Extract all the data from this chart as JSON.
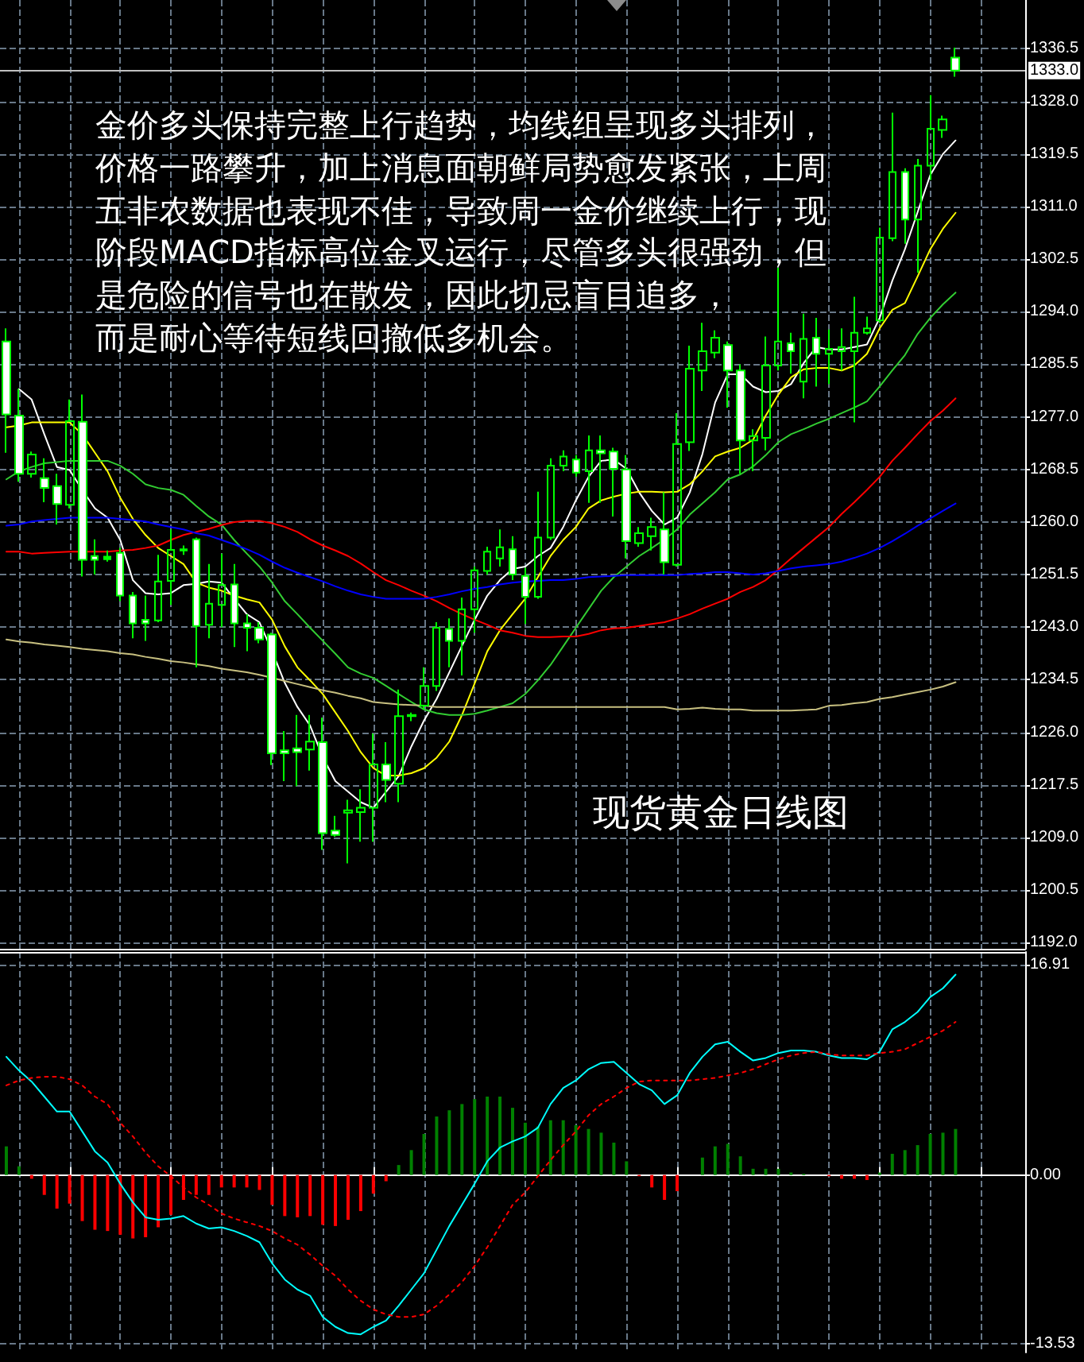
{
  "chart_data": [
    {
      "type": "candlestick",
      "categories": [
        null,
        null,
        null,
        null,
        null,
        null,
        null,
        null,
        null,
        null,
        null,
        null,
        null,
        null,
        null,
        null,
        null,
        null,
        null,
        null,
        null,
        null,
        null,
        null,
        null,
        null,
        null,
        null,
        null,
        null,
        null,
        null,
        null,
        null,
        null,
        null,
        null,
        null,
        null,
        null,
        null,
        null,
        null,
        null,
        null,
        null,
        null,
        null,
        null,
        null,
        null,
        null,
        null,
        null,
        null,
        null,
        null,
        null,
        null,
        null,
        null,
        null,
        null,
        null,
        null,
        null,
        null,
        null,
        null,
        null,
        null,
        null,
        null,
        null,
        null,
        null,
        null,
        null,
        null,
        null,
        null
      ],
      "ohlc": [
        [
          1289.2,
          1291.3,
          1271.2,
          1277.4
        ],
        [
          1277.2,
          1281.5,
          1266.5,
          1267.8
        ],
        [
          1267.8,
          1271.4,
          1267.2,
          1270.9
        ],
        [
          1267.1,
          1270.3,
          1263.2,
          1265.5
        ],
        [
          1265.8,
          1267.8,
          1259.6,
          1262.9
        ],
        [
          1262.8,
          1279.8,
          1262.2,
          1276.3
        ],
        [
          1276.2,
          1280.6,
          1251.2,
          1253.9
        ],
        [
          1254.5,
          1257.2,
          1251.5,
          1253.9
        ],
        [
          1254.0,
          1255.4,
          1253.6,
          1254.4
        ],
        [
          1255.0,
          1255.8,
          1247.2,
          1248.1
        ],
        [
          1248.1,
          1248.7,
          1241.2,
          1243.6
        ],
        [
          1244.2,
          1248.1,
          1240.8,
          1243.6
        ],
        [
          1244.1,
          1254.7,
          1243.8,
          1250.4
        ],
        [
          1250.5,
          1258.8,
          1246.6,
          1255.5
        ],
        [
          1255.4,
          1256.2,
          1254.7,
          1255.6
        ],
        [
          1257.2,
          1257.5,
          1236.5,
          1243.2
        ],
        [
          1243.4,
          1253.2,
          1241.2,
          1246.8
        ],
        [
          1246.6,
          1254.9,
          1243.0,
          1249.8
        ],
        [
          1249.9,
          1253.2,
          1239.8,
          1243.6
        ],
        [
          1243.6,
          1245.1,
          1239.1,
          1242.9
        ],
        [
          1242.9,
          1243.8,
          1240.4,
          1241.0
        ],
        [
          1241.8,
          1242.1,
          1220.7,
          1222.6
        ],
        [
          1223.1,
          1226.2,
          1218.1,
          1222.6
        ],
        [
          1223.4,
          1228.8,
          1217.3,
          1222.8
        ],
        [
          1223.2,
          1228.8,
          1219.8,
          1224.5
        ],
        [
          1224.4,
          1228.4,
          1207.0,
          1209.7
        ],
        [
          1210.1,
          1212.5,
          1209.1,
          1209.4
        ],
        [
          1213.0,
          1215.1,
          1204.8,
          1213.4
        ],
        [
          1213.1,
          1216.8,
          1208.3,
          1213.8
        ],
        [
          1213.8,
          1225.8,
          1208.3,
          1220.8
        ],
        [
          1220.8,
          1224.4,
          1214.7,
          1218.3
        ],
        [
          1217.7,
          1232.9,
          1214.7,
          1228.6
        ],
        [
          1228.6,
          1229.2,
          1227.8,
          1228.8
        ],
        [
          1230.3,
          1236.5,
          1229.7,
          1233.5
        ],
        [
          1233.5,
          1243.8,
          1232.7,
          1242.9
        ],
        [
          1242.7,
          1244.4,
          1236.5,
          1240.8
        ],
        [
          1240.8,
          1247.8,
          1235.2,
          1245.9
        ],
        [
          1245.9,
          1252.8,
          1242.1,
          1252.2
        ],
        [
          1252.1,
          1256.0,
          1251.5,
          1255.2
        ],
        [
          1254.1,
          1258.8,
          1252.8,
          1255.9
        ],
        [
          1255.6,
          1257.7,
          1250.6,
          1251.5
        ],
        [
          1251.3,
          1252.6,
          1243.5,
          1247.9
        ],
        [
          1247.9,
          1264.9,
          1247.6,
          1257.5
        ],
        [
          1257.5,
          1270.3,
          1257.1,
          1269.1
        ],
        [
          1269.1,
          1271.6,
          1268.2,
          1270.6
        ],
        [
          1270.1,
          1270.8,
          1267.3,
          1268.0
        ],
        [
          1268.2,
          1274.0,
          1263.1,
          1271.6
        ],
        [
          1271.6,
          1274.0,
          1263.1,
          1271.1
        ],
        [
          1271.4,
          1272.0,
          1260.9,
          1268.6
        ],
        [
          1268.5,
          1270.8,
          1254.1,
          1256.9
        ],
        [
          1256.6,
          1259.2,
          1256.0,
          1258.2
        ],
        [
          1257.7,
          1260.7,
          1255.4,
          1259.2
        ],
        [
          1258.8,
          1264.8,
          1251.5,
          1253.5
        ],
        [
          1253.1,
          1277.6,
          1252.8,
          1272.6
        ],
        [
          1272.9,
          1288.5,
          1271.5,
          1284.8
        ],
        [
          1284.5,
          1292.2,
          1281.2,
          1287.6
        ],
        [
          1287.4,
          1291.0,
          1286.5,
          1289.8
        ],
        [
          1288.6,
          1289.2,
          1278.5,
          1284.5
        ],
        [
          1284.5,
          1285.5,
          1267.8,
          1273.2
        ],
        [
          1273.2,
          1275.0,
          1268.2,
          1273.9
        ],
        [
          1273.6,
          1290.0,
          1271.6,
          1285.3
        ],
        [
          1285.3,
          1301.1,
          1284.5,
          1289.2
        ],
        [
          1288.9,
          1290.6,
          1284.0,
          1287.6
        ],
        [
          1282.7,
          1293.7,
          1280.0,
          1289.6
        ],
        [
          1289.8,
          1293.0,
          1281.9,
          1287.2
        ],
        [
          1287.2,
          1291.1,
          1282.3,
          1288.0
        ],
        [
          1287.6,
          1291.3,
          1284.5,
          1288.3
        ],
        [
          1287.6,
          1296.4,
          1276.1,
          1290.6
        ],
        [
          1290.6,
          1293.2,
          1290.3,
          1291.3
        ],
        [
          1292.6,
          1307.6,
          1292.2,
          1306.0
        ],
        [
          1305.9,
          1326.2,
          1305.4,
          1316.6
        ],
        [
          1316.6,
          1317.2,
          1305.0,
          1308.9
        ],
        [
          1308.9,
          1318.7,
          1300.3,
          1317.6
        ],
        [
          1317.6,
          1329.0,
          1315.3,
          1323.6
        ],
        [
          1323.4,
          1325.7,
          1322.1,
          1325.1
        ],
        [
          1335.1,
          1336.7,
          1332.0,
          1333.0
        ],
        null,
        null,
        null,
        null,
        null
      ],
      "color": "#00ff00",
      "colors": [
        "#ffffff",
        "#ffffff",
        null,
        "#ffffff",
        "#ffffff",
        null,
        "#ffffff",
        "#ffffff",
        "#00ff00",
        "#ffffff",
        "#ffffff",
        "#ffffff",
        null,
        null,
        "#00ff00",
        "#ffffff",
        null,
        null,
        "#ffffff",
        "#ffffff",
        "#ffffff",
        "#ffffff",
        "#ffffff",
        "#ffffff",
        null,
        "#ffffff",
        "#ffffff",
        null,
        null,
        null,
        "#ffffff",
        null,
        "#00ff00",
        null,
        null,
        "#ffffff",
        null,
        null,
        null,
        null,
        "#ffffff",
        "#ffffff",
        null,
        null,
        null,
        "#ffffff",
        null,
        "#ffffff",
        "#ffffff",
        "#ffffff",
        null,
        null,
        "#ffffff",
        null,
        null,
        null,
        null,
        "#ffffff",
        "#ffffff",
        null,
        null,
        null,
        "#ffffff",
        null,
        "#ffffff",
        null,
        null,
        null,
        null,
        null,
        null,
        "#ffffff",
        null,
        null,
        null,
        "#ffffff",
        null,
        null,
        null,
        null,
        null
      ],
      "series": [
        {
          "type": "line",
          "color": "#ffffff",
          "values": [
            null,
            1281.5,
            1279.8,
            1274.2,
            1268.9,
            1268.4,
            1265.2,
            1262.2,
            1260.7,
            1257.1,
            1250.6,
            1248.5,
            1248.3,
            1248.5,
            1249.8,
            1250.0,
            1250.4,
            1250.2,
            1247.6,
            1245.1,
            1243.8,
            1239.1,
            1234.0,
            1230.1,
            1227.1,
            1222.0,
            1218.1,
            1216.4,
            1214.7,
            1213.8,
            1216.4,
            1218.9,
            1223.7,
            1227.9,
            1231.4,
            1235.7,
            1240.0,
            1244.2,
            1248.1,
            1250.6,
            1252.4,
            1252.8,
            1254.5,
            1255.8,
            1259.2,
            1263.5,
            1267.3,
            1269.9,
            1270.1,
            1268.6,
            1264.8,
            1261.8,
            1259.6,
            1260.7,
            1264.8,
            1271.0,
            1279.3,
            1283.9,
            1283.9,
            1281.9,
            1281.0,
            1281.2,
            1282.3,
            1285.7,
            1288.3,
            1287.9,
            1287.9,
            1288.3,
            1288.7,
            1293.0,
            1299.0,
            1304.1,
            1310.1,
            1316.1,
            1319.5,
            1321.7,
            null,
            null,
            null,
            null,
            null
          ]
        },
        {
          "type": "line",
          "color": "#ffff00",
          "values": [
            1275.3,
            1275.6,
            1276.1,
            1276.1,
            1276.1,
            1276.1,
            1274.2,
            1271.2,
            1268.2,
            1263.9,
            1260.5,
            1257.9,
            1255.8,
            1254.5,
            1253.2,
            1250.2,
            1249.4,
            1248.9,
            1248.1,
            1247.5,
            1247.0,
            1244.2,
            1239.9,
            1236.5,
            1234.4,
            1232.2,
            1229.2,
            1226.2,
            1222.8,
            1220.2,
            1219.0,
            1219.0,
            1219.4,
            1220.2,
            1221.9,
            1224.5,
            1228.8,
            1233.9,
            1239.1,
            1242.5,
            1245.1,
            1247.6,
            1251.1,
            1254.5,
            1257.1,
            1259.2,
            1262.2,
            1263.5,
            1264.1,
            1264.6,
            1264.9,
            1264.9,
            1264.8,
            1264.9,
            1266.1,
            1268.2,
            1270.6,
            1271.4,
            1272.0,
            1273.3,
            1277.2,
            1280.6,
            1283.4,
            1284.7,
            1284.9,
            1284.9,
            1284.5,
            1285.3,
            1287.2,
            1291.3,
            1294.3,
            1295.4,
            1299.7,
            1304.1,
            1307.4,
            1310.0,
            null,
            null,
            null,
            null,
            null
          ]
        },
        {
          "type": "line",
          "color": "#32cd32",
          "values": [
            1266.9,
            1268.2,
            1268.9,
            1269.5,
            1269.7,
            1269.9,
            1269.9,
            1269.9,
            1269.9,
            1269.1,
            1267.8,
            1266.1,
            1265.5,
            1265.2,
            1264.4,
            1262.6,
            1260.9,
            1259.6,
            1257.1,
            1254.9,
            1252.8,
            1250.2,
            1247.2,
            1245.1,
            1242.9,
            1240.8,
            1238.7,
            1236.5,
            1235.5,
            1234.8,
            1233.5,
            1232.2,
            1230.9,
            1229.7,
            1229.1,
            1228.8,
            1228.8,
            1229.0,
            1229.5,
            1230.1,
            1230.7,
            1232.2,
            1234.4,
            1236.9,
            1239.9,
            1242.9,
            1245.9,
            1248.9,
            1251.1,
            1252.8,
            1254.5,
            1255.8,
            1257.2,
            1258.8,
            1261.2,
            1263.0,
            1264.8,
            1266.9,
            1267.7,
            1269.0,
            1270.8,
            1272.9,
            1274.2,
            1275.0,
            1275.9,
            1276.7,
            1277.6,
            1278.5,
            1279.5,
            1281.9,
            1284.5,
            1287.0,
            1290.4,
            1293.0,
            1295.2,
            1297.1,
            null,
            null,
            null,
            null,
            null
          ]
        },
        {
          "type": "line",
          "color": "#ff0000",
          "values": [
            1255.2,
            1255.2,
            1254.9,
            1255.0,
            1255.1,
            1255.2,
            1255.2,
            1255.2,
            1255.2,
            1255.4,
            1255.5,
            1255.8,
            1256.2,
            1257.1,
            1257.9,
            1258.4,
            1258.9,
            1259.5,
            1260.0,
            1260.2,
            1260.2,
            1259.8,
            1259.2,
            1258.4,
            1257.2,
            1256.2,
            1255.4,
            1254.5,
            1253.3,
            1251.9,
            1250.6,
            1249.8,
            1248.9,
            1248.1,
            1247.2,
            1246.1,
            1245.1,
            1244.2,
            1243.4,
            1242.5,
            1242.1,
            1241.6,
            1241.4,
            1241.4,
            1241.5,
            1241.5,
            1241.9,
            1242.5,
            1242.8,
            1242.9,
            1243.2,
            1243.5,
            1243.8,
            1244.4,
            1245.1,
            1246.0,
            1246.8,
            1247.6,
            1248.7,
            1249.5,
            1250.6,
            1252.3,
            1254.1,
            1255.8,
            1257.5,
            1259.2,
            1261.3,
            1263.2,
            1265.2,
            1267.3,
            1269.9,
            1272.0,
            1274.2,
            1276.3,
            1278.0,
            1280.0,
            null,
            null,
            null,
            null,
            null
          ]
        },
        {
          "type": "line",
          "color": "#0000ff",
          "values": [
            1259.4,
            1259.6,
            1260.1,
            1260.3,
            1260.5,
            1260.7,
            1260.7,
            1260.7,
            1260.7,
            1260.5,
            1260.3,
            1260.1,
            1259.6,
            1259.2,
            1258.8,
            1258.2,
            1257.8,
            1257.1,
            1256.4,
            1255.6,
            1254.7,
            1253.6,
            1252.6,
            1251.8,
            1251.1,
            1250.4,
            1249.6,
            1248.9,
            1248.3,
            1247.9,
            1247.6,
            1247.6,
            1247.6,
            1247.6,
            1247.9,
            1248.3,
            1248.8,
            1249.2,
            1249.5,
            1249.9,
            1250.2,
            1250.4,
            1250.5,
            1250.6,
            1250.6,
            1250.8,
            1251.1,
            1251.2,
            1251.3,
            1251.4,
            1251.4,
            1251.4,
            1251.4,
            1251.4,
            1251.6,
            1251.7,
            1251.9,
            1251.9,
            1251.7,
            1251.5,
            1251.7,
            1252.1,
            1252.5,
            1252.8,
            1253.0,
            1253.2,
            1253.6,
            1254.2,
            1254.9,
            1255.8,
            1256.9,
            1258.1,
            1259.4,
            1260.6,
            1261.8,
            1263.0,
            null,
            null,
            null,
            null,
            null
          ]
        },
        {
          "type": "line",
          "color": "#c8c080",
          "values": [
            1241.0,
            1240.7,
            1240.5,
            1240.2,
            1240.0,
            1239.8,
            1239.5,
            1239.3,
            1239.1,
            1238.8,
            1238.6,
            1238.2,
            1237.9,
            1237.5,
            1237.3,
            1237.0,
            1236.7,
            1236.3,
            1236.0,
            1235.7,
            1235.3,
            1234.8,
            1234.3,
            1233.8,
            1233.3,
            1232.8,
            1232.4,
            1231.9,
            1231.5,
            1230.9,
            1230.7,
            1230.5,
            1230.4,
            1230.3,
            1230.1,
            1230.1,
            1230.1,
            1230.1,
            1230.1,
            1230.1,
            1230.1,
            1230.1,
            1230.1,
            1230.1,
            1230.1,
            1230.1,
            1230.1,
            1230.1,
            1230.1,
            1230.1,
            1230.1,
            1230.1,
            1230.1,
            1229.7,
            1229.8,
            1230.0,
            1229.8,
            1229.7,
            1229.7,
            1229.5,
            1229.5,
            1229.5,
            1229.5,
            1229.6,
            1229.7,
            1230.3,
            1230.4,
            1230.7,
            1230.9,
            1231.4,
            1231.7,
            1232.1,
            1232.5,
            1232.9,
            1233.4,
            1234.1,
            null,
            null,
            null,
            null,
            null
          ]
        }
      ],
      "ylim": [
        1191,
        1344.4
      ],
      "yticks": [
        {
          "value": 1192,
          "label": "1192.0"
        },
        1200.5,
        {
          "value": 1209,
          "label": "1209.0"
        },
        1217.5,
        {
          "value": 1226,
          "label": "1226.0"
        },
        1234.5,
        {
          "value": 1243,
          "label": "1243.0"
        },
        1251.5,
        {
          "value": 1260,
          "label": "1260.0"
        },
        1268.5,
        {
          "value": 1277,
          "label": "1277.0"
        },
        1285.5,
        {
          "value": 1294,
          "label": "1294.0"
        },
        1302.5,
        {
          "value": 1311,
          "label": "1311.0"
        },
        1319.5,
        {
          "value": 1328,
          "label": "1328.0"
        },
        1336.5
      ],
      "grid": true,
      "tick_labels": "y",
      "marker": "none",
      "ref_lines": [
        {
          "axis": "y",
          "value": 1333,
          "label": "1333.0",
          "color": "#c0c0c0"
        }
      ],
      "annotations": [
        "金价多头保持完整上行趋势，均线组呈现多头排列，",
        "价格一路攀升，加上消息面朝鲜局势愈发紧张，上周",
        "五非农数据也表现不佳，导致周一金价继续上行，现",
        "阶段MACD指标高位金叉运行，尽管多头很强劲，但",
        "是危险的信号也在散发，因此切忌盲目追多，",
        "而是耐心等待短线回撤低多机会。",
        "现货黄金日线图"
      ]
    },
    {
      "type": "bar",
      "categories": [
        null,
        null,
        null,
        null,
        null,
        null,
        null,
        null,
        null,
        null,
        null,
        null,
        null,
        null,
        null,
        null,
        null,
        null,
        null,
        null,
        null,
        null,
        null,
        null,
        null,
        null,
        null,
        null,
        null,
        null,
        null,
        null,
        null,
        null,
        null,
        null,
        null,
        null,
        null,
        null,
        null,
        null,
        null,
        null,
        null,
        null,
        null,
        null,
        null,
        null,
        null,
        null,
        null,
        null,
        null,
        null,
        null,
        null,
        null,
        null,
        null,
        null,
        null,
        null,
        null,
        null,
        null,
        null,
        null,
        null,
        null,
        null,
        null,
        null,
        null,
        null,
        null,
        null,
        null,
        null,
        null
      ],
      "series": [
        {
          "values": [
            2.3,
            0.7,
            -0.3,
            -1.6,
            -2.7,
            -2.3,
            -3.7,
            -4.4,
            -4.5,
            -4.8,
            -5.1,
            -5.0,
            -4.2,
            -3.2,
            -2.0,
            -1.6,
            -1.6,
            -1.0,
            -1.0,
            -1.0,
            -1.2,
            -2.4,
            -3.3,
            -3.4,
            -3.3,
            -4.0,
            -4.1,
            -3.6,
            -2.9,
            -1.5,
            -0.5,
            0.8,
            2.0,
            3.3,
            4.7,
            5.2,
            5.7,
            6.1,
            6.3,
            6.3,
            5.4,
            4.2,
            3.9,
            4.4,
            4.4,
            4.0,
            3.7,
            3.4,
            2.6,
            1.1,
            -0.1,
            -1.0,
            -2.0,
            -1.3,
            0,
            1.4,
            2.3,
            2.5,
            1.5,
            0.5,
            0.5,
            0.5,
            0.2,
            0.1,
            0,
            -0.1,
            -0.3,
            -0.3,
            -0.4,
            0.2,
            1.7,
            2.0,
            2.4,
            3.3,
            3.4,
            3.7,
            null,
            null,
            null,
            null,
            null
          ],
          "colors": [
            "#008000",
            "#008000",
            "#ff0000",
            "#ff0000",
            "#ff0000",
            "#ff0000",
            "#ff0000",
            "#ff0000",
            "#ff0000",
            "#ff0000",
            "#ff0000",
            "#ff0000",
            "#ff0000",
            "#ff0000",
            "#ff0000",
            "#ff0000",
            "#ff0000",
            "#ff0000",
            "#ff0000",
            "#ff0000",
            "#ff0000",
            "#ff0000",
            "#ff0000",
            "#ff0000",
            "#ff0000",
            "#ff0000",
            "#ff0000",
            "#ff0000",
            "#ff0000",
            "#ff0000",
            "#ff0000",
            "#008000",
            "#008000",
            "#008000",
            "#008000",
            "#008000",
            "#008000",
            "#008000",
            "#008000",
            "#008000",
            "#008000",
            "#008000",
            "#008000",
            "#008000",
            "#008000",
            "#008000",
            "#008000",
            "#008000",
            "#008000",
            "#008000",
            "#ff0000",
            "#ff0000",
            "#ff0000",
            "#ff0000",
            "#008000",
            "#008000",
            "#008000",
            "#008000",
            "#008000",
            "#008000",
            "#008000",
            "#008000",
            "#008000",
            "#008000",
            "#008000",
            "#ff0000",
            "#ff0000",
            "#ff0000",
            "#ff0000",
            "#008000",
            "#008000",
            "#008000",
            "#008000",
            "#008000",
            "#008000",
            "#008000",
            null,
            null,
            null,
            null,
            null
          ]
        },
        {
          "type": "line",
          "color": "#00ffff",
          "values": [
            9.5,
            8.4,
            7.5,
            6.3,
            5.1,
            5.1,
            3.5,
            1.9,
            1.0,
            -0.7,
            -2.2,
            -3.4,
            -3.6,
            -3.5,
            -3.3,
            -3.9,
            -4.3,
            -4.2,
            -4.5,
            -4.9,
            -5.4,
            -7.1,
            -8.4,
            -9.2,
            -9.7,
            -11.4,
            -12.2,
            -12.7,
            -12.8,
            -12.2,
            -11.7,
            -10.5,
            -9.2,
            -7.9,
            -6.0,
            -4.1,
            -2.4,
            -0.7,
            1.1,
            2.2,
            2.7,
            3.1,
            3.8,
            5.7,
            7.0,
            7.6,
            8.5,
            9.0,
            9.1,
            8.2,
            7.3,
            6.8,
            5.7,
            6.4,
            8.2,
            9.5,
            10.5,
            10.7,
            9.9,
            9.2,
            9.4,
            9.8,
            10.0,
            10.0,
            9.9,
            9.6,
            9.4,
            9.4,
            9.3,
            9.9,
            11.7,
            12.3,
            13.1,
            14.3,
            15.0,
            16.1,
            null,
            null,
            null,
            null,
            null
          ]
        },
        {
          "type": "line",
          "color": "#ff0000",
          "line_style": "dotted",
          "values": [
            7.2,
            7.6,
            7.8,
            7.9,
            7.9,
            7.7,
            7.2,
            6.3,
            5.7,
            4.2,
            3.1,
            1.8,
            0.7,
            -0.1,
            -1.0,
            -1.8,
            -2.4,
            -3.1,
            -3.5,
            -3.8,
            -4.1,
            -4.5,
            -5.1,
            -5.6,
            -6.4,
            -7.3,
            -8.1,
            -9.2,
            -10.1,
            -10.8,
            -11.2,
            -11.4,
            -11.4,
            -11.2,
            -10.5,
            -9.6,
            -8.6,
            -7.3,
            -5.8,
            -4.1,
            -2.4,
            -1.4,
            -0.1,
            1.2,
            2.4,
            3.5,
            4.8,
            5.7,
            6.3,
            7.0,
            7.5,
            7.6,
            7.6,
            7.6,
            7.6,
            7.7,
            7.8,
            8.0,
            8.2,
            8.5,
            8.9,
            9.3,
            9.6,
            9.8,
            9.9,
            9.7,
            9.6,
            9.6,
            9.6,
            9.8,
            9.9,
            10.1,
            10.6,
            11.1,
            11.6,
            12.3,
            null,
            null,
            null,
            null,
            null
          ]
        }
      ],
      "ylim": [
        -14.26,
        17.92
      ],
      "yticks": [
        -13.53,
        {
          "value": 0,
          "label": "0.00"
        },
        16.91
      ],
      "grid": true,
      "tick_labels": "y",
      "marker": "none"
    }
  ]
}
